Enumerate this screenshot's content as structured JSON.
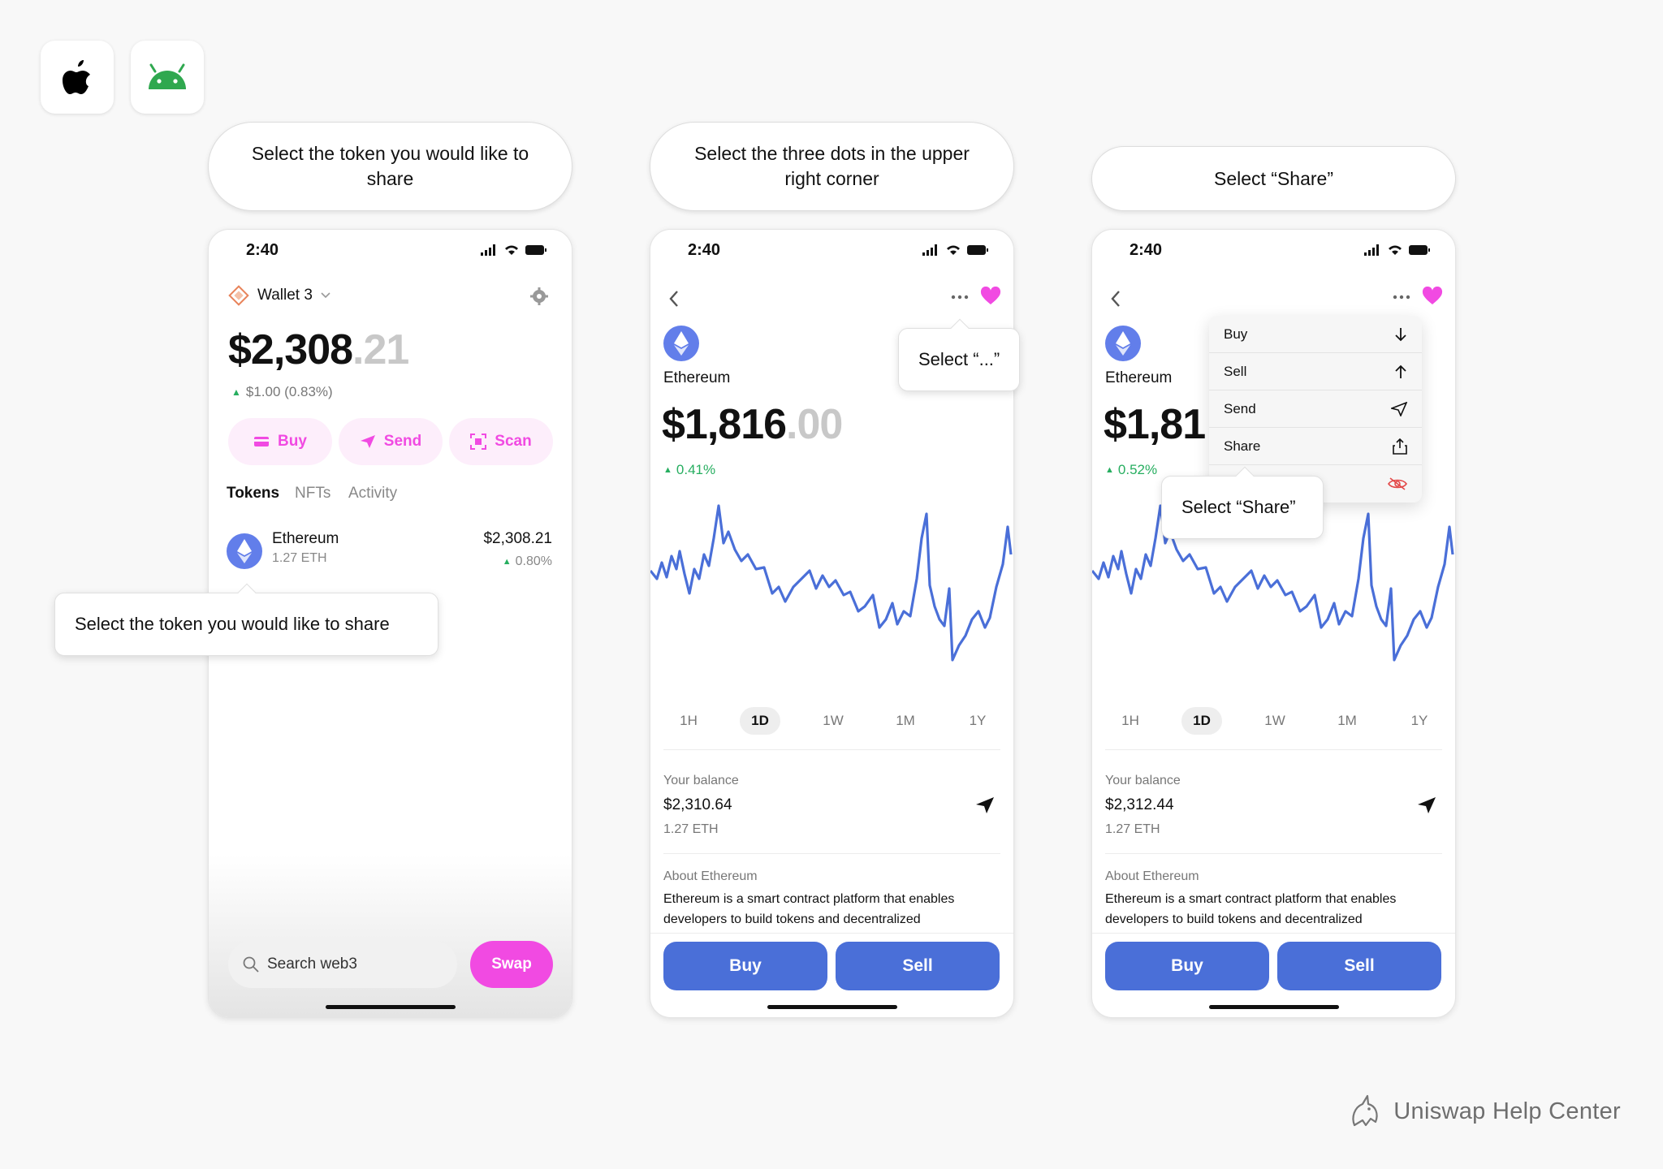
{
  "os_icons": [
    {
      "name": "apple-icon"
    },
    {
      "name": "android-icon"
    }
  ],
  "steps": [
    {
      "label": "Select the token you would like to share"
    },
    {
      "label": "Select the three dots in the upper right corner"
    },
    {
      "label": "Select “Share”"
    }
  ],
  "status": {
    "time": "2:40"
  },
  "phone1": {
    "wallet_name": "Wallet 3",
    "balance_main": "$2,308",
    "balance_cents": ".21",
    "change": "$1.00 (0.83%)",
    "actions": [
      "Buy",
      "Send",
      "Scan"
    ],
    "tabs": [
      "Tokens",
      "NFTs",
      "Activity"
    ],
    "token": {
      "name": "Ethereum",
      "amount": "1.27 ETH",
      "value": "$2,308.21",
      "change": "0.80%"
    },
    "callout": "Select the token you would like to share",
    "search_placeholder": "Search web3",
    "swap_label": "Swap"
  },
  "phone2": {
    "token_name": "Ethereum",
    "price_main": "$1,816",
    "price_cents": ".00",
    "change": "0.41%",
    "callout": "Select “...”",
    "ranges": [
      "1H",
      "1D",
      "1W",
      "1M",
      "1Y"
    ],
    "selected_range": "1D",
    "balance_label": "Your balance",
    "balance_value": "$2,310.64",
    "balance_eth": "1.27 ETH",
    "about_label": "About Ethereum",
    "about_text_1": "Ethereum is a smart contract platform that enables",
    "about_text_2": "developers to build tokens and decentralized",
    "buy_label": "Buy",
    "sell_label": "Sell"
  },
  "phone3": {
    "token_name": "Ethereum",
    "price_main": "$1,81",
    "change": "0.52%",
    "menu": [
      {
        "label": "Buy",
        "icon": "arrow-down-icon"
      },
      {
        "label": "Sell",
        "icon": "arrow-up-icon"
      },
      {
        "label": "Send",
        "icon": "send-icon"
      },
      {
        "label": "Share",
        "icon": "share-icon"
      },
      {
        "label": "",
        "icon": "hide-eye-icon"
      }
    ],
    "callout": "Select “Share”",
    "ranges": [
      "1H",
      "1D",
      "1W",
      "1M",
      "1Y"
    ],
    "selected_range": "1D",
    "balance_label": "Your balance",
    "balance_value": "$2,312.44",
    "balance_eth": "1.27 ETH",
    "about_label": "About Ethereum",
    "about_text_1": "Ethereum is a smart contract platform that enables",
    "about_text_2": "developers to build tokens and decentralized",
    "buy_label": "Buy",
    "sell_label": "Sell"
  },
  "colors": {
    "accent_pink": "#f14ae2",
    "positive_green": "#27ae60",
    "chart_blue": "#4a6fd8",
    "button_blue": "#4a6fd8"
  },
  "footer": {
    "brand": "Uniswap Help Center"
  }
}
